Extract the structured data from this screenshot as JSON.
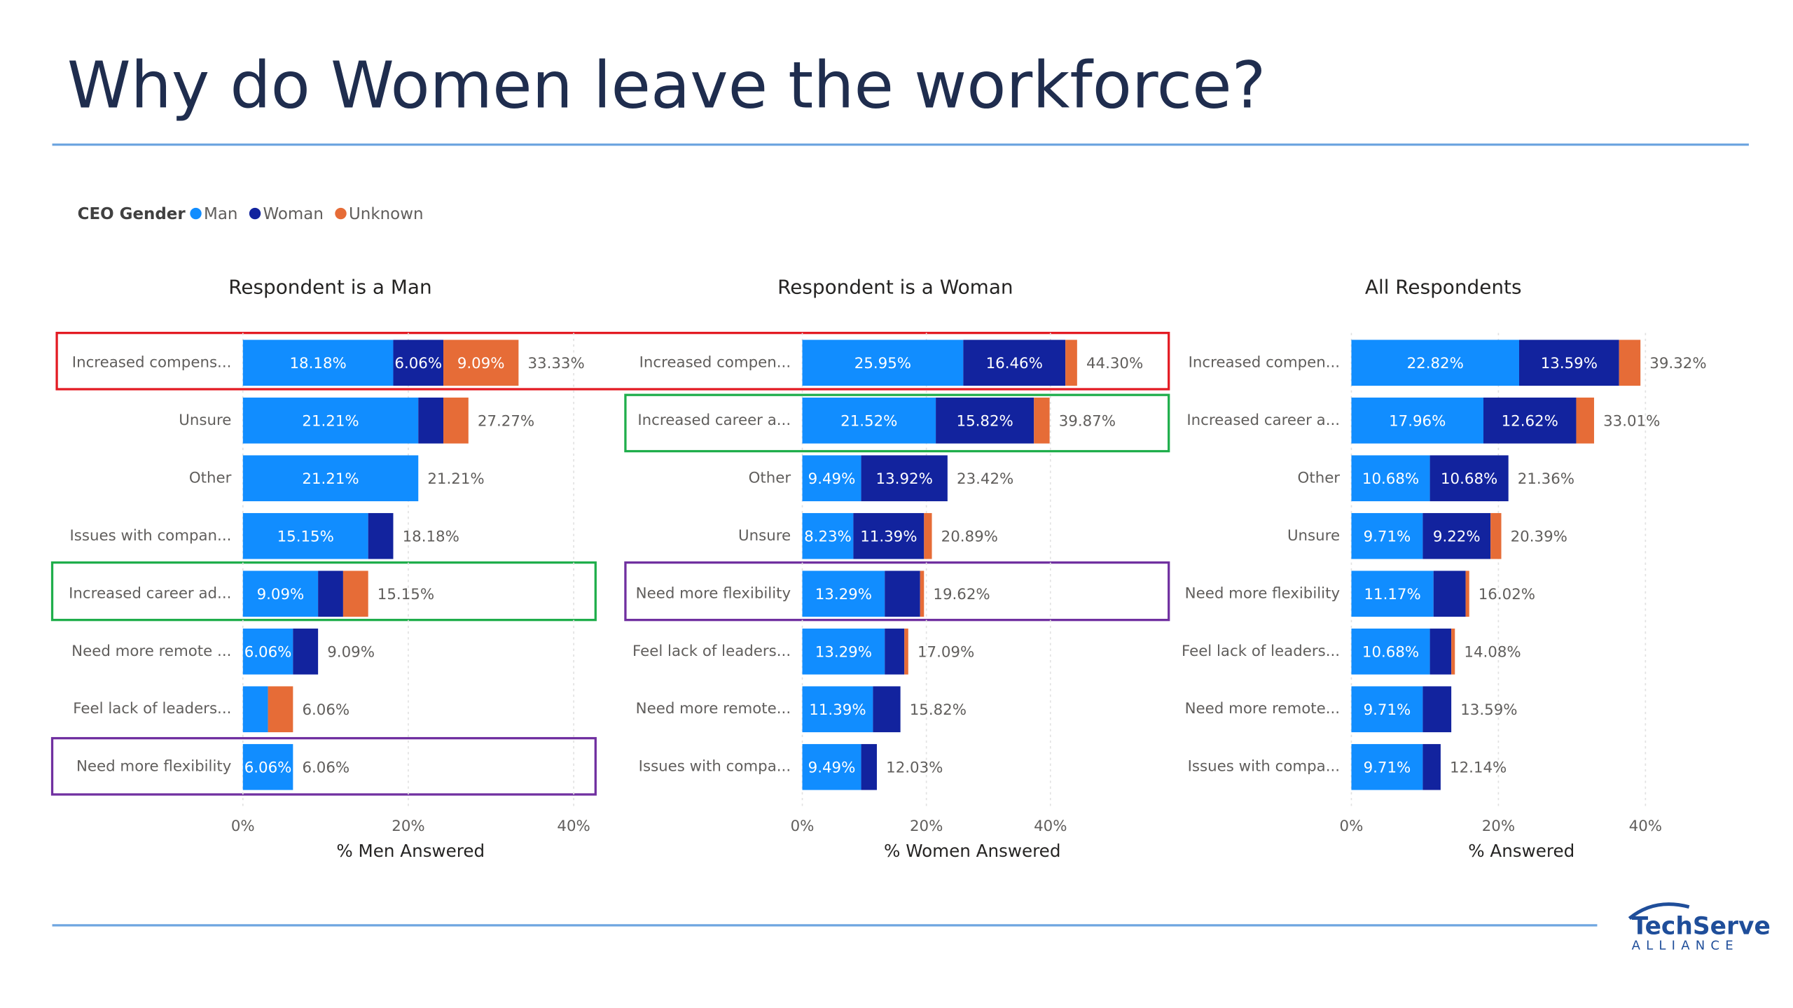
{
  "title": "Why do Women leave the workforce?",
  "legend_title": "CEO Gender",
  "logo": {
    "name": "TechServe",
    "tagline": "ALLIANCE"
  },
  "chart_data": [
    {
      "type": "bar",
      "orientation": "horizontal",
      "stacked": true,
      "grid": true,
      "title": "Respondent is a Man",
      "xlabel": "% Men Answered",
      "categories": [
        "Increased compens...",
        "Unsure",
        "Other",
        "Issues with compan...",
        "Increased career ad...",
        "Need more remote ...",
        "Feel lack of leaders...",
        "Need more flexibility"
      ],
      "series": [
        {
          "name": "Man",
          "color": "#118dff",
          "values": [
            18.18,
            21.21,
            21.21,
            15.15,
            9.09,
            6.06,
            3.03,
            6.06
          ],
          "value_labels": [
            "18.18%",
            "21.21%",
            "21.21%",
            "15.15%",
            "9.09%",
            "6.06%",
            null,
            "6.06%"
          ]
        },
        {
          "name": "Woman",
          "color": "#12239e",
          "values": [
            6.06,
            3.03,
            0,
            3.03,
            3.03,
            3.03,
            0,
            0
          ],
          "value_labels": [
            "6.06%",
            null,
            null,
            null,
            null,
            null,
            null,
            null
          ]
        },
        {
          "name": "Unknown",
          "color": "#e66c37",
          "values": [
            9.09,
            3.03,
            0,
            0,
            3.03,
            0,
            3.03,
            0
          ],
          "value_labels": [
            "9.09%",
            null,
            null,
            null,
            null,
            null,
            null,
            null
          ]
        }
      ],
      "totals": [
        33.33,
        27.27,
        21.21,
        18.18,
        15.15,
        9.09,
        6.06,
        6.06
      ],
      "total_labels": [
        "33.33%",
        "27.27%",
        "21.21%",
        "18.18%",
        "15.15%",
        "9.09%",
        "6.06%",
        "6.06%"
      ],
      "xlim": [
        0,
        40
      ],
      "xticks": [
        {
          "value": 0,
          "label": "0%"
        },
        {
          "value": 20,
          "label": "20%"
        },
        {
          "value": 40,
          "label": "40%"
        }
      ]
    },
    {
      "type": "bar",
      "orientation": "horizontal",
      "stacked": true,
      "grid": true,
      "title": "Respondent is a Woman",
      "xlabel": "% Women Answered",
      "categories": [
        "Increased compen...",
        "Increased career a...",
        "Other",
        "Unsure",
        "Need more flexibility",
        "Feel lack of leaders...",
        "Need more remote...",
        "Issues with compa..."
      ],
      "series": [
        {
          "name": "Man",
          "color": "#118dff",
          "values": [
            25.95,
            21.52,
            9.49,
            8.23,
            13.29,
            13.29,
            11.39,
            9.49
          ],
          "value_labels": [
            "25.95%",
            "21.52%",
            "9.49%",
            "8.23%",
            "13.29%",
            "13.29%",
            "11.39%",
            "9.49%"
          ]
        },
        {
          "name": "Woman",
          "color": "#12239e",
          "values": [
            16.46,
            15.82,
            13.92,
            11.39,
            5.7,
            3.16,
            4.43,
            2.53
          ],
          "value_labels": [
            "16.46%",
            "15.82%",
            "13.92%",
            "11.39%",
            null,
            null,
            null,
            null
          ]
        },
        {
          "name": "Unknown",
          "color": "#e66c37",
          "values": [
            1.89,
            2.53,
            0,
            1.27,
            0.63,
            0.63,
            0,
            0
          ],
          "value_labels": [
            null,
            null,
            null,
            null,
            null,
            null,
            null,
            null
          ]
        }
      ],
      "totals": [
        44.3,
        39.87,
        23.42,
        20.89,
        19.62,
        17.09,
        15.82,
        12.03
      ],
      "total_labels": [
        "44.30%",
        "39.87%",
        "23.42%",
        "20.89%",
        "19.62%",
        "17.09%",
        "15.82%",
        "12.03%"
      ],
      "xlim": [
        0,
        45
      ],
      "xticks": [
        {
          "value": 0,
          "label": "0%"
        },
        {
          "value": 20,
          "label": "20%"
        },
        {
          "value": 40,
          "label": "40%"
        }
      ]
    },
    {
      "type": "bar",
      "orientation": "horizontal",
      "stacked": true,
      "grid": true,
      "title": "All Respondents",
      "xlabel": "% Answered",
      "categories": [
        "Increased compen...",
        "Increased career a...",
        "Other",
        "Unsure",
        "Need more flexibility",
        "Feel lack of leaders...",
        "Need more remote...",
        "Issues with compa..."
      ],
      "series": [
        {
          "name": "Man",
          "color": "#118dff",
          "values": [
            22.82,
            17.96,
            10.68,
            9.71,
            11.17,
            10.68,
            9.71,
            9.71
          ],
          "value_labels": [
            "22.82%",
            "17.96%",
            "10.68%",
            "9.71%",
            "11.17%",
            "10.68%",
            "9.71%",
            "9.71%"
          ]
        },
        {
          "name": "Woman",
          "color": "#12239e",
          "values": [
            13.59,
            12.62,
            10.68,
            9.22,
            4.37,
            2.91,
            3.88,
            2.43
          ],
          "value_labels": [
            "13.59%",
            "12.62%",
            "10.68%",
            "9.22%",
            null,
            null,
            null,
            null
          ]
        },
        {
          "name": "Unknown",
          "color": "#e66c37",
          "values": [
            2.91,
            2.43,
            0,
            1.46,
            0.49,
            0.49,
            0,
            0
          ],
          "value_labels": [
            null,
            null,
            null,
            null,
            null,
            null,
            null,
            null
          ]
        }
      ],
      "totals": [
        39.32,
        33.01,
        21.36,
        20.39,
        16.02,
        14.08,
        13.59,
        12.14
      ],
      "total_labels": [
        "39.32%",
        "33.01%",
        "21.36%",
        "20.39%",
        "16.02%",
        "14.08%",
        "13.59%",
        "12.14%"
      ],
      "xlim": [
        0,
        40
      ],
      "xticks": [
        {
          "value": 0,
          "label": "0%"
        },
        {
          "value": 20,
          "label": "20%"
        },
        {
          "value": 40,
          "label": "40%"
        }
      ]
    }
  ]
}
